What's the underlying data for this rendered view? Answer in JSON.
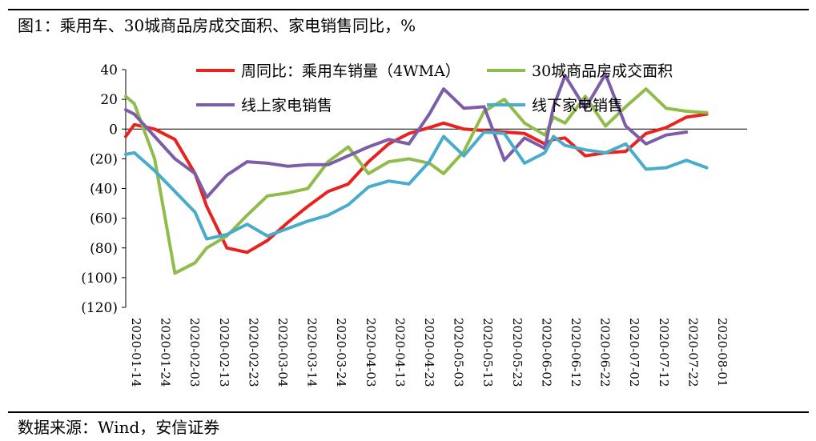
{
  "title": "图1：乘用车、30城商品房成交面积、家电销售同比，%",
  "source": "数据来源：Wind，安信证券",
  "chart_data": {
    "type": "line",
    "ylim": [
      -120,
      40
    ],
    "yticks": [
      40,
      20,
      0,
      -20,
      -40,
      -60,
      -80,
      -100,
      -120
    ],
    "ytick_labels": [
      "40",
      "20",
      "0",
      "(20)",
      "(40)",
      "(60)",
      "(80)",
      "(100)",
      "(120)"
    ],
    "xtick_labels": [
      "2020-01-14",
      "2020-01-24",
      "2020-02-03",
      "2020-02-13",
      "2020-02-23",
      "2020-03-04",
      "2020-03-14",
      "2020-03-24",
      "2020-04-03",
      "2020-04-13",
      "2020-04-23",
      "2020-05-03",
      "2020-05-13",
      "2020-05-23",
      "2020-06-02",
      "2020-06-12",
      "2020-06-22",
      "2020-07-02",
      "2020-07-12",
      "2020-07-22",
      "2020-08-01"
    ],
    "x": [
      0,
      3,
      10,
      17,
      24,
      28,
      35,
      42,
      49,
      56,
      63,
      70,
      77,
      84,
      91,
      98,
      105,
      110,
      117,
      124,
      131,
      138,
      145,
      148,
      152,
      159,
      166,
      173,
      180,
      187,
      194,
      201,
      208,
      215
    ],
    "series": [
      {
        "name": "周同比：乘用车销量（4WMA）",
        "color": "#e8231f",
        "values": [
          -5,
          3,
          0,
          -7,
          -30,
          -52,
          -80,
          -83,
          -75,
          -63,
          -52,
          -42,
          -37,
          -22,
          -10,
          -3,
          1,
          4,
          0,
          -1,
          -2,
          -3,
          -10,
          -7,
          -6,
          -18,
          -16,
          -15,
          -3,
          1,
          8,
          10,
          null,
          null
        ]
      },
      {
        "name": "30城商品房成交面积",
        "color": "#8fbc4a",
        "values": [
          22,
          17,
          -20,
          -97,
          -90,
          -80,
          -72,
          -58,
          -45,
          -43,
          -40,
          -22,
          -12,
          -30,
          -22,
          -20,
          -23,
          -30,
          -15,
          12,
          20,
          4,
          -4,
          8,
          4,
          22,
          2,
          15,
          27,
          14,
          12,
          11,
          null,
          null
        ]
      },
      {
        "name": "线上家电销售",
        "color": "#7b5ea7",
        "values": [
          13,
          10,
          -5,
          -20,
          -30,
          -46,
          -31,
          -22,
          -23,
          -25,
          -24,
          -24,
          -18,
          -12,
          -7,
          -10,
          10,
          27,
          14,
          15,
          -21,
          -6,
          -13,
          15,
          36,
          14,
          37,
          2,
          -10,
          -4,
          -2,
          null,
          null,
          null
        ]
      },
      {
        "name": "线下家电销售",
        "color": "#4aaccb",
        "values": [
          -17,
          -16,
          -28,
          -42,
          -56,
          -74,
          -71,
          -64,
          -72,
          -67,
          -62,
          -58,
          -51,
          -39,
          -35,
          -37,
          -22,
          -5,
          -18,
          -2,
          -3,
          -23,
          -16,
          -5,
          -11,
          -14,
          -16,
          -10,
          -27,
          -26,
          -21,
          -26,
          null,
          null
        ]
      }
    ],
    "legend": "top, over plot area"
  }
}
